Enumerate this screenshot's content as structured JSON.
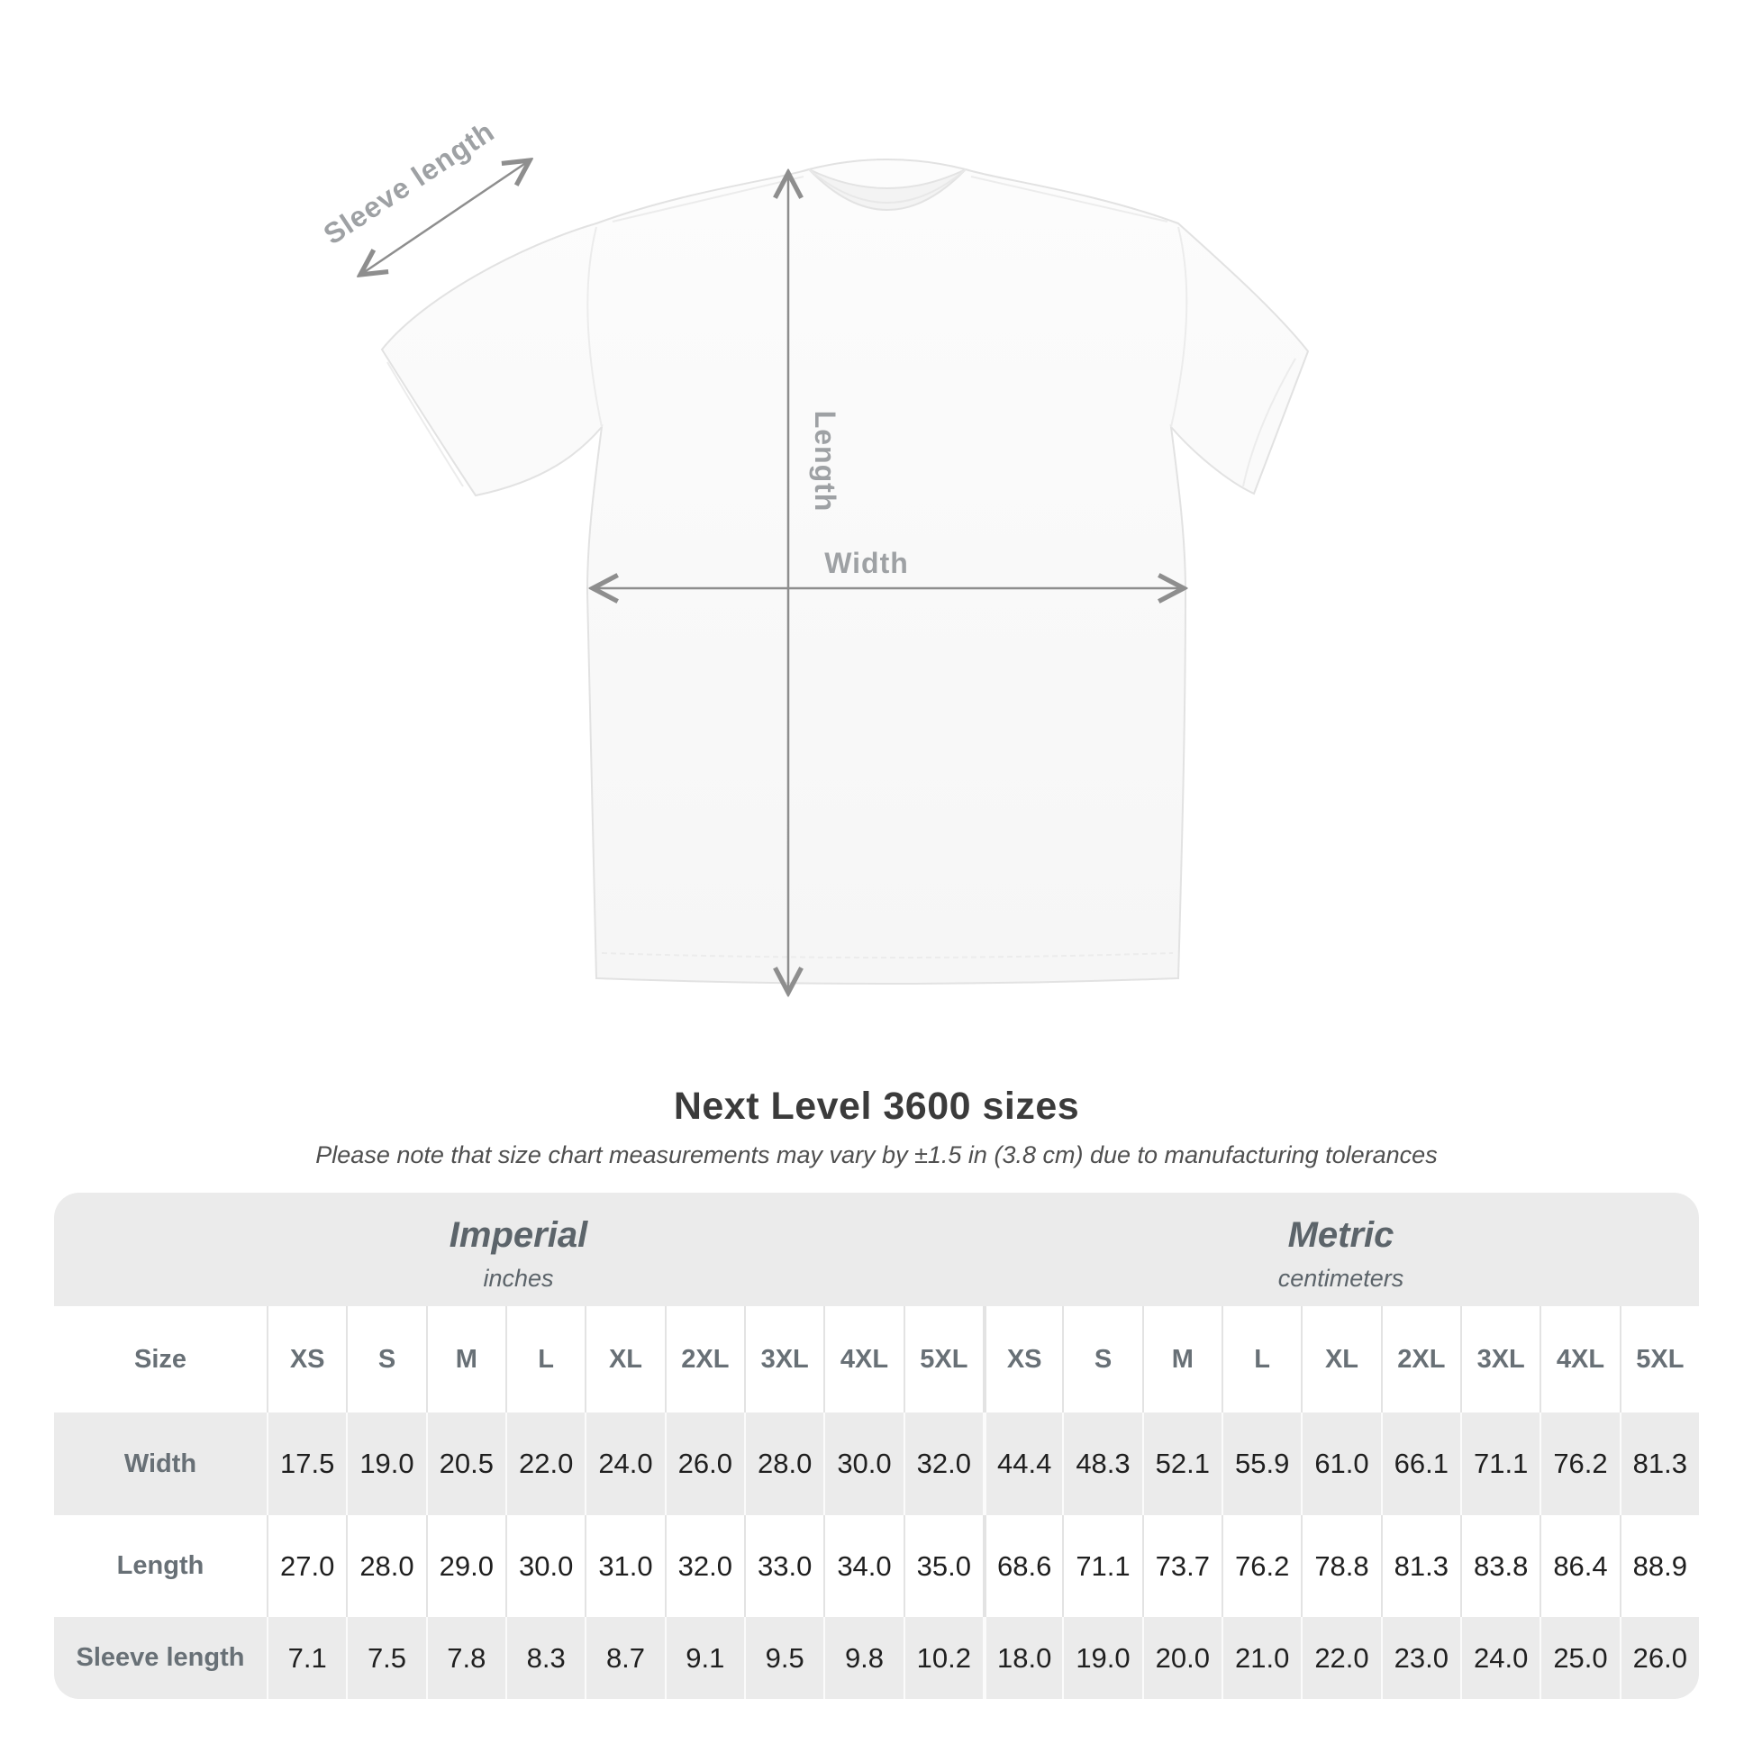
{
  "title": "Next Level 3600 sizes",
  "subtitle": "Please note that size chart measurements may vary by ±1.5 in (3.8 cm) due to manufacturing tolerances",
  "diagram": {
    "labels": {
      "sleeve": "Sleeve length",
      "length": "Length",
      "width": "Width"
    }
  },
  "table": {
    "sections": [
      {
        "label": "Imperial",
        "sublabel": "inches"
      },
      {
        "label": "Metric",
        "sublabel": "centimeters"
      }
    ],
    "size_row_label": "Size",
    "sizes": [
      "XS",
      "S",
      "M",
      "L",
      "XL",
      "2XL",
      "3XL",
      "4XL",
      "5XL"
    ],
    "rows": [
      {
        "label": "Width",
        "imperial": [
          "17.5",
          "19.0",
          "20.5",
          "22.0",
          "24.0",
          "26.0",
          "28.0",
          "30.0",
          "32.0"
        ],
        "metric": [
          "44.4",
          "48.3",
          "52.1",
          "55.9",
          "61.0",
          "66.1",
          "71.1",
          "76.2",
          "81.3"
        ]
      },
      {
        "label": "Length",
        "imperial": [
          "27.0",
          "28.0",
          "29.0",
          "30.0",
          "31.0",
          "32.0",
          "33.0",
          "34.0",
          "35.0"
        ],
        "metric": [
          "68.6",
          "71.1",
          "73.7",
          "76.2",
          "78.8",
          "81.3",
          "83.8",
          "86.4",
          "88.9"
        ]
      },
      {
        "label": "Sleeve length",
        "imperial": [
          "7.1",
          "7.5",
          "7.8",
          "8.3",
          "8.7",
          "9.1",
          "9.5",
          "9.8",
          "10.2"
        ],
        "metric": [
          "18.0",
          "19.0",
          "20.0",
          "21.0",
          "22.0",
          "23.0",
          "24.0",
          "25.0",
          "26.0"
        ]
      }
    ]
  },
  "colors": {
    "row_gray": "#ebebeb",
    "header_text": "#687076",
    "data_text": "#1f1f1f",
    "arrow_gray": "#8e8e8e",
    "label_gray": "#9ea1a4",
    "title_text": "#3b3b3b"
  }
}
